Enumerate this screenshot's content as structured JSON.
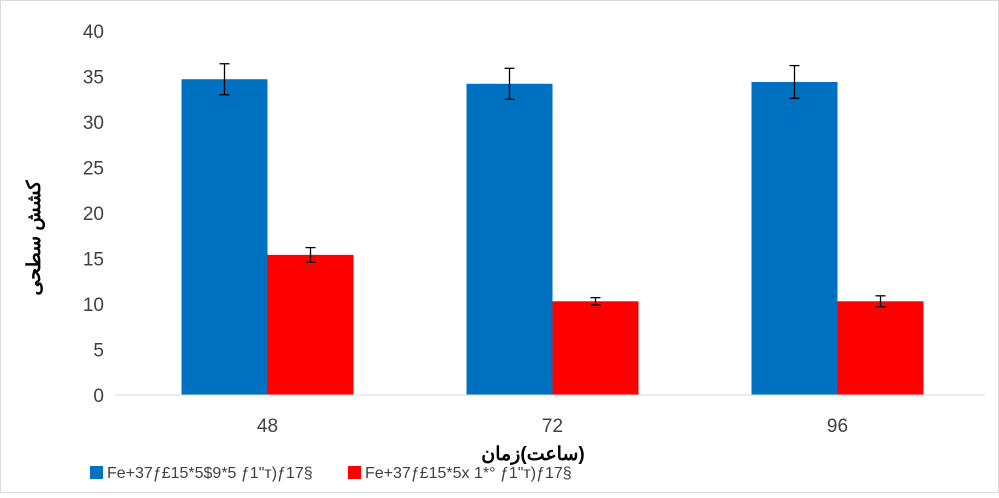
{
  "chart_data": {
    "type": "bar",
    "title": "",
    "xlabel": "ساعت)زمان)",
    "ylabel": "كشش سطحی",
    "categories": [
      "48",
      "72",
      "96"
    ],
    "ylim": [
      0,
      40
    ],
    "yticks": [
      "0",
      "5",
      "10",
      "15",
      "20",
      "25",
      "30",
      "35",
      "40"
    ],
    "grid": false,
    "legend_position": "bottom-left",
    "series": [
      {
        "name": "Fe+37ƒ£15*5$9*5 ƒ1\"т)ƒ17§",
        "color": "#0070C0",
        "values": [
          34.7,
          34.2,
          34.4
        ],
        "errors": [
          1.7,
          1.7,
          1.8
        ]
      },
      {
        "name": "Fe+37ƒ£15*5x 1*° ƒ1\"т)ƒ17§",
        "color": "#FF0000",
        "values": [
          15.4,
          10.3,
          10.3
        ],
        "errors": [
          0.8,
          0.4,
          0.6
        ]
      }
    ]
  }
}
